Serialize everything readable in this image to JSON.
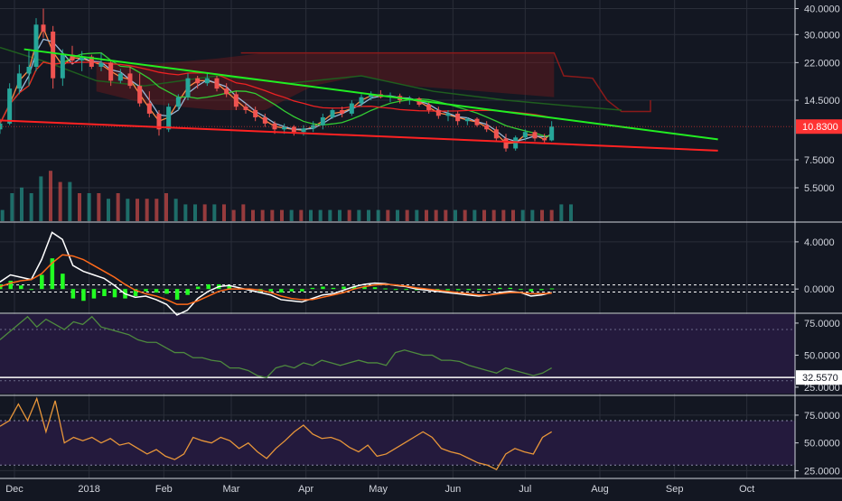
{
  "colors": {
    "background": "#131722",
    "axis_text": "#d1d4dc",
    "grid": "#2a2e39",
    "separator": "#d1d4dc",
    "candle_up": "#26a69a",
    "candle_down": "#ef5350",
    "trendline_green": "#22ee22",
    "trendline_red": "#ff2222",
    "sma_slow": "#ee2222",
    "sma_mid": "#33cc33",
    "ema_fast": "#ff8844",
    "ema_med": "#9ab8d8",
    "cloud_red": "#8b1a1a",
    "cloud_green": "#1f5e1f",
    "macd": "#ffffff",
    "macd_signal": "#ff6a1a",
    "macd_hist": "#22ff22",
    "rsi_panel_bg": "#241a3d",
    "rsi_line": "#4e8a3e",
    "stoch_line": "#e8963a",
    "price_badge": "#ff3333"
  },
  "x_axis": {
    "labels": [
      {
        "text": "Dec",
        "day": 6
      },
      {
        "text": "2018",
        "day": 37
      },
      {
        "text": "Feb",
        "day": 68
      },
      {
        "text": "Mar",
        "day": 96
      },
      {
        "text": "Apr",
        "day": 127
      },
      {
        "text": "May",
        "day": 157
      },
      {
        "text": "Jun",
        "day": 188
      },
      {
        "text": "Jul",
        "day": 218
      },
      {
        "text": "Aug",
        "day": 249
      },
      {
        "text": "Sep",
        "day": 280
      },
      {
        "text": "Oct",
        "day": 310
      }
    ]
  },
  "price_panel": {
    "scale": "log",
    "ticks": [
      "40.0000",
      "30.0000",
      "22.0000",
      "14.5000",
      "7.5000",
      "5.5000"
    ],
    "last_price_label": "10.8300",
    "last_price": 10.83
  },
  "macd_panel": {
    "ticks": [
      "4.0000",
      "0.0000"
    ]
  },
  "rsi_panel": {
    "ticks": [
      "75.0000",
      "50.0000",
      "25.0000"
    ],
    "level_label": "32.5570",
    "level_value": 32.557
  },
  "stoch_panel": {
    "ticks": [
      "75.0000",
      "50.0000",
      "25.0000"
    ]
  },
  "chart_data": [
    {
      "type": "candlestick",
      "panel": "price",
      "x_unit": "days since Dec 1 2017 (approx.)",
      "y_scale": "log",
      "ylim": [
        3.8,
        44
      ],
      "candles": [
        {
          "d": 0,
          "o": 10.5,
          "h": 11.8,
          "l": 10.0,
          "c": 11.2
        },
        {
          "d": 4,
          "o": 11.2,
          "h": 17.5,
          "l": 11.0,
          "c": 16.5
        },
        {
          "d": 8,
          "o": 16.5,
          "h": 21.5,
          "l": 15.5,
          "c": 19.5
        },
        {
          "d": 12,
          "o": 19.5,
          "h": 25.0,
          "l": 17.0,
          "c": 21.0
        },
        {
          "d": 15,
          "o": 21.0,
          "h": 36.0,
          "l": 20.0,
          "c": 33.5
        },
        {
          "d": 18,
          "o": 33.5,
          "h": 40.0,
          "l": 29.0,
          "c": 31.0
        },
        {
          "d": 22,
          "o": 31.0,
          "h": 33.0,
          "l": 16.5,
          "c": 18.5
        },
        {
          "d": 26,
          "o": 18.5,
          "h": 25.5,
          "l": 17.0,
          "c": 24.0
        },
        {
          "d": 30,
          "o": 24.0,
          "h": 26.5,
          "l": 21.5,
          "c": 22.5
        },
        {
          "d": 34,
          "o": 22.5,
          "h": 25.0,
          "l": 20.0,
          "c": 23.5
        },
        {
          "d": 38,
          "o": 23.5,
          "h": 24.0,
          "l": 20.5,
          "c": 21.0
        },
        {
          "d": 42,
          "o": 21.0,
          "h": 24.5,
          "l": 20.0,
          "c": 22.0
        },
        {
          "d": 46,
          "o": 22.0,
          "h": 22.5,
          "l": 17.0,
          "c": 18.0
        },
        {
          "d": 50,
          "o": 18.0,
          "h": 20.5,
          "l": 17.5,
          "c": 19.5
        },
        {
          "d": 54,
          "o": 19.5,
          "h": 21.0,
          "l": 16.5,
          "c": 17.0
        },
        {
          "d": 58,
          "o": 17.0,
          "h": 19.5,
          "l": 13.5,
          "c": 14.0
        },
        {
          "d": 62,
          "o": 14.0,
          "h": 16.0,
          "l": 12.0,
          "c": 12.5
        },
        {
          "d": 66,
          "o": 12.5,
          "h": 13.0,
          "l": 9.8,
          "c": 10.5
        },
        {
          "d": 70,
          "o": 10.5,
          "h": 14.0,
          "l": 10.2,
          "c": 13.5
        },
        {
          "d": 74,
          "o": 13.5,
          "h": 15.5,
          "l": 13.0,
          "c": 15.0
        },
        {
          "d": 78,
          "o": 15.0,
          "h": 19.5,
          "l": 14.5,
          "c": 18.5
        },
        {
          "d": 82,
          "o": 18.5,
          "h": 19.0,
          "l": 16.5,
          "c": 17.5
        },
        {
          "d": 86,
          "o": 17.5,
          "h": 19.5,
          "l": 17.0,
          "c": 18.5
        },
        {
          "d": 90,
          "o": 18.5,
          "h": 19.0,
          "l": 16.0,
          "c": 16.5
        },
        {
          "d": 94,
          "o": 16.5,
          "h": 17.5,
          "l": 15.0,
          "c": 15.5
        },
        {
          "d": 98,
          "o": 15.5,
          "h": 16.0,
          "l": 13.0,
          "c": 13.5
        },
        {
          "d": 102,
          "o": 13.5,
          "h": 14.0,
          "l": 12.5,
          "c": 13.0
        },
        {
          "d": 106,
          "o": 13.0,
          "h": 13.5,
          "l": 11.5,
          "c": 12.0
        },
        {
          "d": 110,
          "o": 12.0,
          "h": 12.5,
          "l": 10.8,
          "c": 11.2
        },
        {
          "d": 114,
          "o": 11.2,
          "h": 11.5,
          "l": 10.0,
          "c": 10.5
        },
        {
          "d": 118,
          "o": 10.5,
          "h": 11.2,
          "l": 10.0,
          "c": 10.8
        },
        {
          "d": 122,
          "o": 10.8,
          "h": 11.0,
          "l": 9.8,
          "c": 10.2
        },
        {
          "d": 126,
          "o": 10.2,
          "h": 11.0,
          "l": 9.8,
          "c": 10.6
        },
        {
          "d": 130,
          "o": 10.6,
          "h": 11.5,
          "l": 10.2,
          "c": 11.0
        },
        {
          "d": 134,
          "o": 11.0,
          "h": 12.5,
          "l": 10.5,
          "c": 12.0
        },
        {
          "d": 138,
          "o": 12.0,
          "h": 13.2,
          "l": 11.8,
          "c": 13.0
        },
        {
          "d": 142,
          "o": 13.0,
          "h": 13.5,
          "l": 12.0,
          "c": 12.5
        },
        {
          "d": 146,
          "o": 12.5,
          "h": 14.5,
          "l": 12.2,
          "c": 14.0
        },
        {
          "d": 150,
          "o": 14.0,
          "h": 15.5,
          "l": 13.5,
          "c": 15.0
        },
        {
          "d": 154,
          "o": 15.0,
          "h": 16.0,
          "l": 14.5,
          "c": 15.5
        },
        {
          "d": 158,
          "o": 15.5,
          "h": 16.2,
          "l": 14.8,
          "c": 15.0
        },
        {
          "d": 162,
          "o": 15.0,
          "h": 15.8,
          "l": 14.2,
          "c": 15.2
        },
        {
          "d": 166,
          "o": 15.2,
          "h": 15.6,
          "l": 14.0,
          "c": 14.5
        },
        {
          "d": 170,
          "o": 14.5,
          "h": 15.2,
          "l": 13.8,
          "c": 14.8
        },
        {
          "d": 174,
          "o": 14.8,
          "h": 15.0,
          "l": 13.5,
          "c": 13.8
        },
        {
          "d": 178,
          "o": 13.8,
          "h": 14.2,
          "l": 12.5,
          "c": 13.0
        },
        {
          "d": 182,
          "o": 13.0,
          "h": 13.5,
          "l": 11.8,
          "c": 12.2
        },
        {
          "d": 186,
          "o": 12.2,
          "h": 13.0,
          "l": 11.5,
          "c": 12.5
        },
        {
          "d": 190,
          "o": 12.5,
          "h": 12.8,
          "l": 11.0,
          "c": 11.5
        },
        {
          "d": 194,
          "o": 11.5,
          "h": 12.0,
          "l": 11.0,
          "c": 11.8
        },
        {
          "d": 198,
          "o": 11.8,
          "h": 12.0,
          "l": 10.8,
          "c": 11.0
        },
        {
          "d": 202,
          "o": 11.0,
          "h": 11.5,
          "l": 10.2,
          "c": 10.5
        },
        {
          "d": 206,
          "o": 10.5,
          "h": 10.8,
          "l": 9.2,
          "c": 9.5
        },
        {
          "d": 210,
          "o": 9.5,
          "h": 10.0,
          "l": 8.2,
          "c": 8.5
        },
        {
          "d": 214,
          "o": 8.5,
          "h": 9.8,
          "l": 8.3,
          "c": 9.6
        },
        {
          "d": 218,
          "o": 9.6,
          "h": 10.5,
          "l": 9.3,
          "c": 10.2
        },
        {
          "d": 222,
          "o": 10.2,
          "h": 10.4,
          "l": 9.2,
          "c": 9.5
        },
        {
          "d": 226,
          "o": 9.5,
          "h": 10.0,
          "l": 9.0,
          "c": 9.3
        },
        {
          "d": 229,
          "o": 9.3,
          "h": 11.5,
          "l": 9.2,
          "c": 10.83
        }
      ],
      "volume": [
        2,
        5,
        6,
        5,
        8,
        9,
        7,
        7,
        5,
        5,
        5,
        4,
        5,
        4,
        4,
        4,
        4,
        5,
        4,
        3,
        3,
        3,
        3,
        3,
        2,
        3,
        2,
        2,
        2,
        2,
        2,
        2,
        2,
        2,
        2,
        2,
        2,
        2,
        2,
        2,
        2,
        2,
        2,
        2,
        2,
        2,
        2,
        2,
        2,
        2,
        2,
        2,
        2,
        2,
        2,
        2,
        2,
        2,
        3,
        3
      ],
      "trendlines": [
        {
          "name": "",
          "color": "green",
          "points": [
            [
              10,
              25.5
            ],
            [
              298,
              9.4
            ]
          ]
        },
        {
          "name": "",
          "color": "red",
          "points": [
            [
              0,
              11.6
            ],
            [
              298,
              8.3
            ]
          ]
        }
      ]
    },
    {
      "type": "line",
      "panel": "macd",
      "ylim": [
        -1.9,
        5.6
      ],
      "series": [
        {
          "name": "",
          "values": [
            0.6,
            1.2,
            1.0,
            0.8,
            2.5,
            4.8,
            4.2,
            2.0,
            1.5,
            1.2,
            0.9,
            0.3,
            -0.4,
            -0.7,
            -0.6,
            -0.9,
            -1.3,
            -2.2,
            -1.8,
            -0.8,
            -0.2,
            0.2,
            0.3,
            0.1,
            -0.1,
            -0.3,
            -0.5,
            -0.9,
            -1.0,
            -1.1,
            -0.8,
            -0.5,
            -0.4,
            -0.1,
            0.2,
            0.4,
            0.5,
            0.45,
            0.3,
            0.2,
            0.0,
            -0.1,
            -0.2,
            -0.3,
            -0.4,
            -0.5,
            -0.6,
            -0.5,
            -0.3,
            -0.2,
            -0.3,
            -0.6,
            -0.5,
            -0.3
          ]
        },
        {
          "name": "",
          "values": [
            0.2,
            0.5,
            0.7,
            0.8,
            1.3,
            2.2,
            2.9,
            2.8,
            2.5,
            2.0,
            1.5,
            1.0,
            0.4,
            -0.1,
            -0.4,
            -0.6,
            -0.9,
            -1.3,
            -1.3,
            -1.0,
            -0.6,
            -0.2,
            0.0,
            0.0,
            0.0,
            -0.1,
            -0.3,
            -0.6,
            -0.8,
            -0.9,
            -0.9,
            -0.7,
            -0.5,
            -0.3,
            0.0,
            0.2,
            0.35,
            0.4,
            0.35,
            0.25,
            0.1,
            0.0,
            -0.1,
            -0.2,
            -0.3,
            -0.4,
            -0.5,
            -0.5,
            -0.4,
            -0.3,
            -0.3,
            -0.4,
            -0.4,
            -0.35
          ]
        }
      ],
      "histogram": [
        0.4,
        0.7,
        0.3,
        0.0,
        1.2,
        2.6,
        1.3,
        -0.8,
        -1.0,
        -0.8,
        -0.6,
        -0.7,
        -0.8,
        -0.6,
        -0.2,
        -0.3,
        -0.4,
        -0.9,
        -0.5,
        0.2,
        0.4,
        0.4,
        0.3,
        0.1,
        -0.1,
        -0.2,
        -0.2,
        -0.3,
        -0.2,
        -0.2,
        0.1,
        0.2,
        0.1,
        0.2,
        0.2,
        0.2,
        0.15,
        0.05,
        -0.05,
        -0.05,
        -0.1,
        -0.1,
        -0.1,
        -0.1,
        -0.1,
        -0.1,
        -0.1,
        0.0,
        0.1,
        0.1,
        0.0,
        -0.2,
        -0.1,
        0.05
      ],
      "dashed_levels": [
        0.35,
        -0.25
      ]
    },
    {
      "type": "line",
      "panel": "rsi",
      "ylim": [
        20,
        82
      ],
      "series": [
        {
          "name": "",
          "values": [
            62,
            68,
            74,
            80,
            72,
            78,
            74,
            70,
            76,
            74,
            80,
            72,
            70,
            68,
            66,
            62,
            60,
            60,
            56,
            52,
            52,
            48,
            48,
            46,
            45,
            40,
            40,
            38,
            34,
            32.5,
            40,
            42,
            40,
            44,
            42,
            46,
            44,
            42,
            44,
            46,
            44,
            44,
            42,
            52,
            54,
            52,
            50,
            50,
            46,
            46,
            45,
            42,
            40,
            38,
            36,
            40,
            38,
            36,
            34,
            36,
            40
          ]
        }
      ],
      "level": 32.557
    },
    {
      "type": "line",
      "panel": "stochastic",
      "ylim": [
        18,
        92
      ],
      "series": [
        {
          "name": "",
          "values": [
            65,
            70,
            85,
            70,
            90,
            60,
            88,
            50,
            55,
            52,
            55,
            50,
            54,
            48,
            50,
            45,
            40,
            44,
            38,
            35,
            40,
            55,
            52,
            50,
            55,
            52,
            45,
            50,
            42,
            36,
            45,
            52,
            60,
            66,
            58,
            54,
            55,
            52,
            46,
            42,
            48,
            38,
            40,
            45,
            50,
            55,
            60,
            55,
            45,
            42,
            40,
            36,
            32,
            30,
            26,
            40,
            45,
            42,
            40,
            55,
            60
          ]
        }
      ],
      "bands": [
        70,
        30
      ]
    }
  ]
}
